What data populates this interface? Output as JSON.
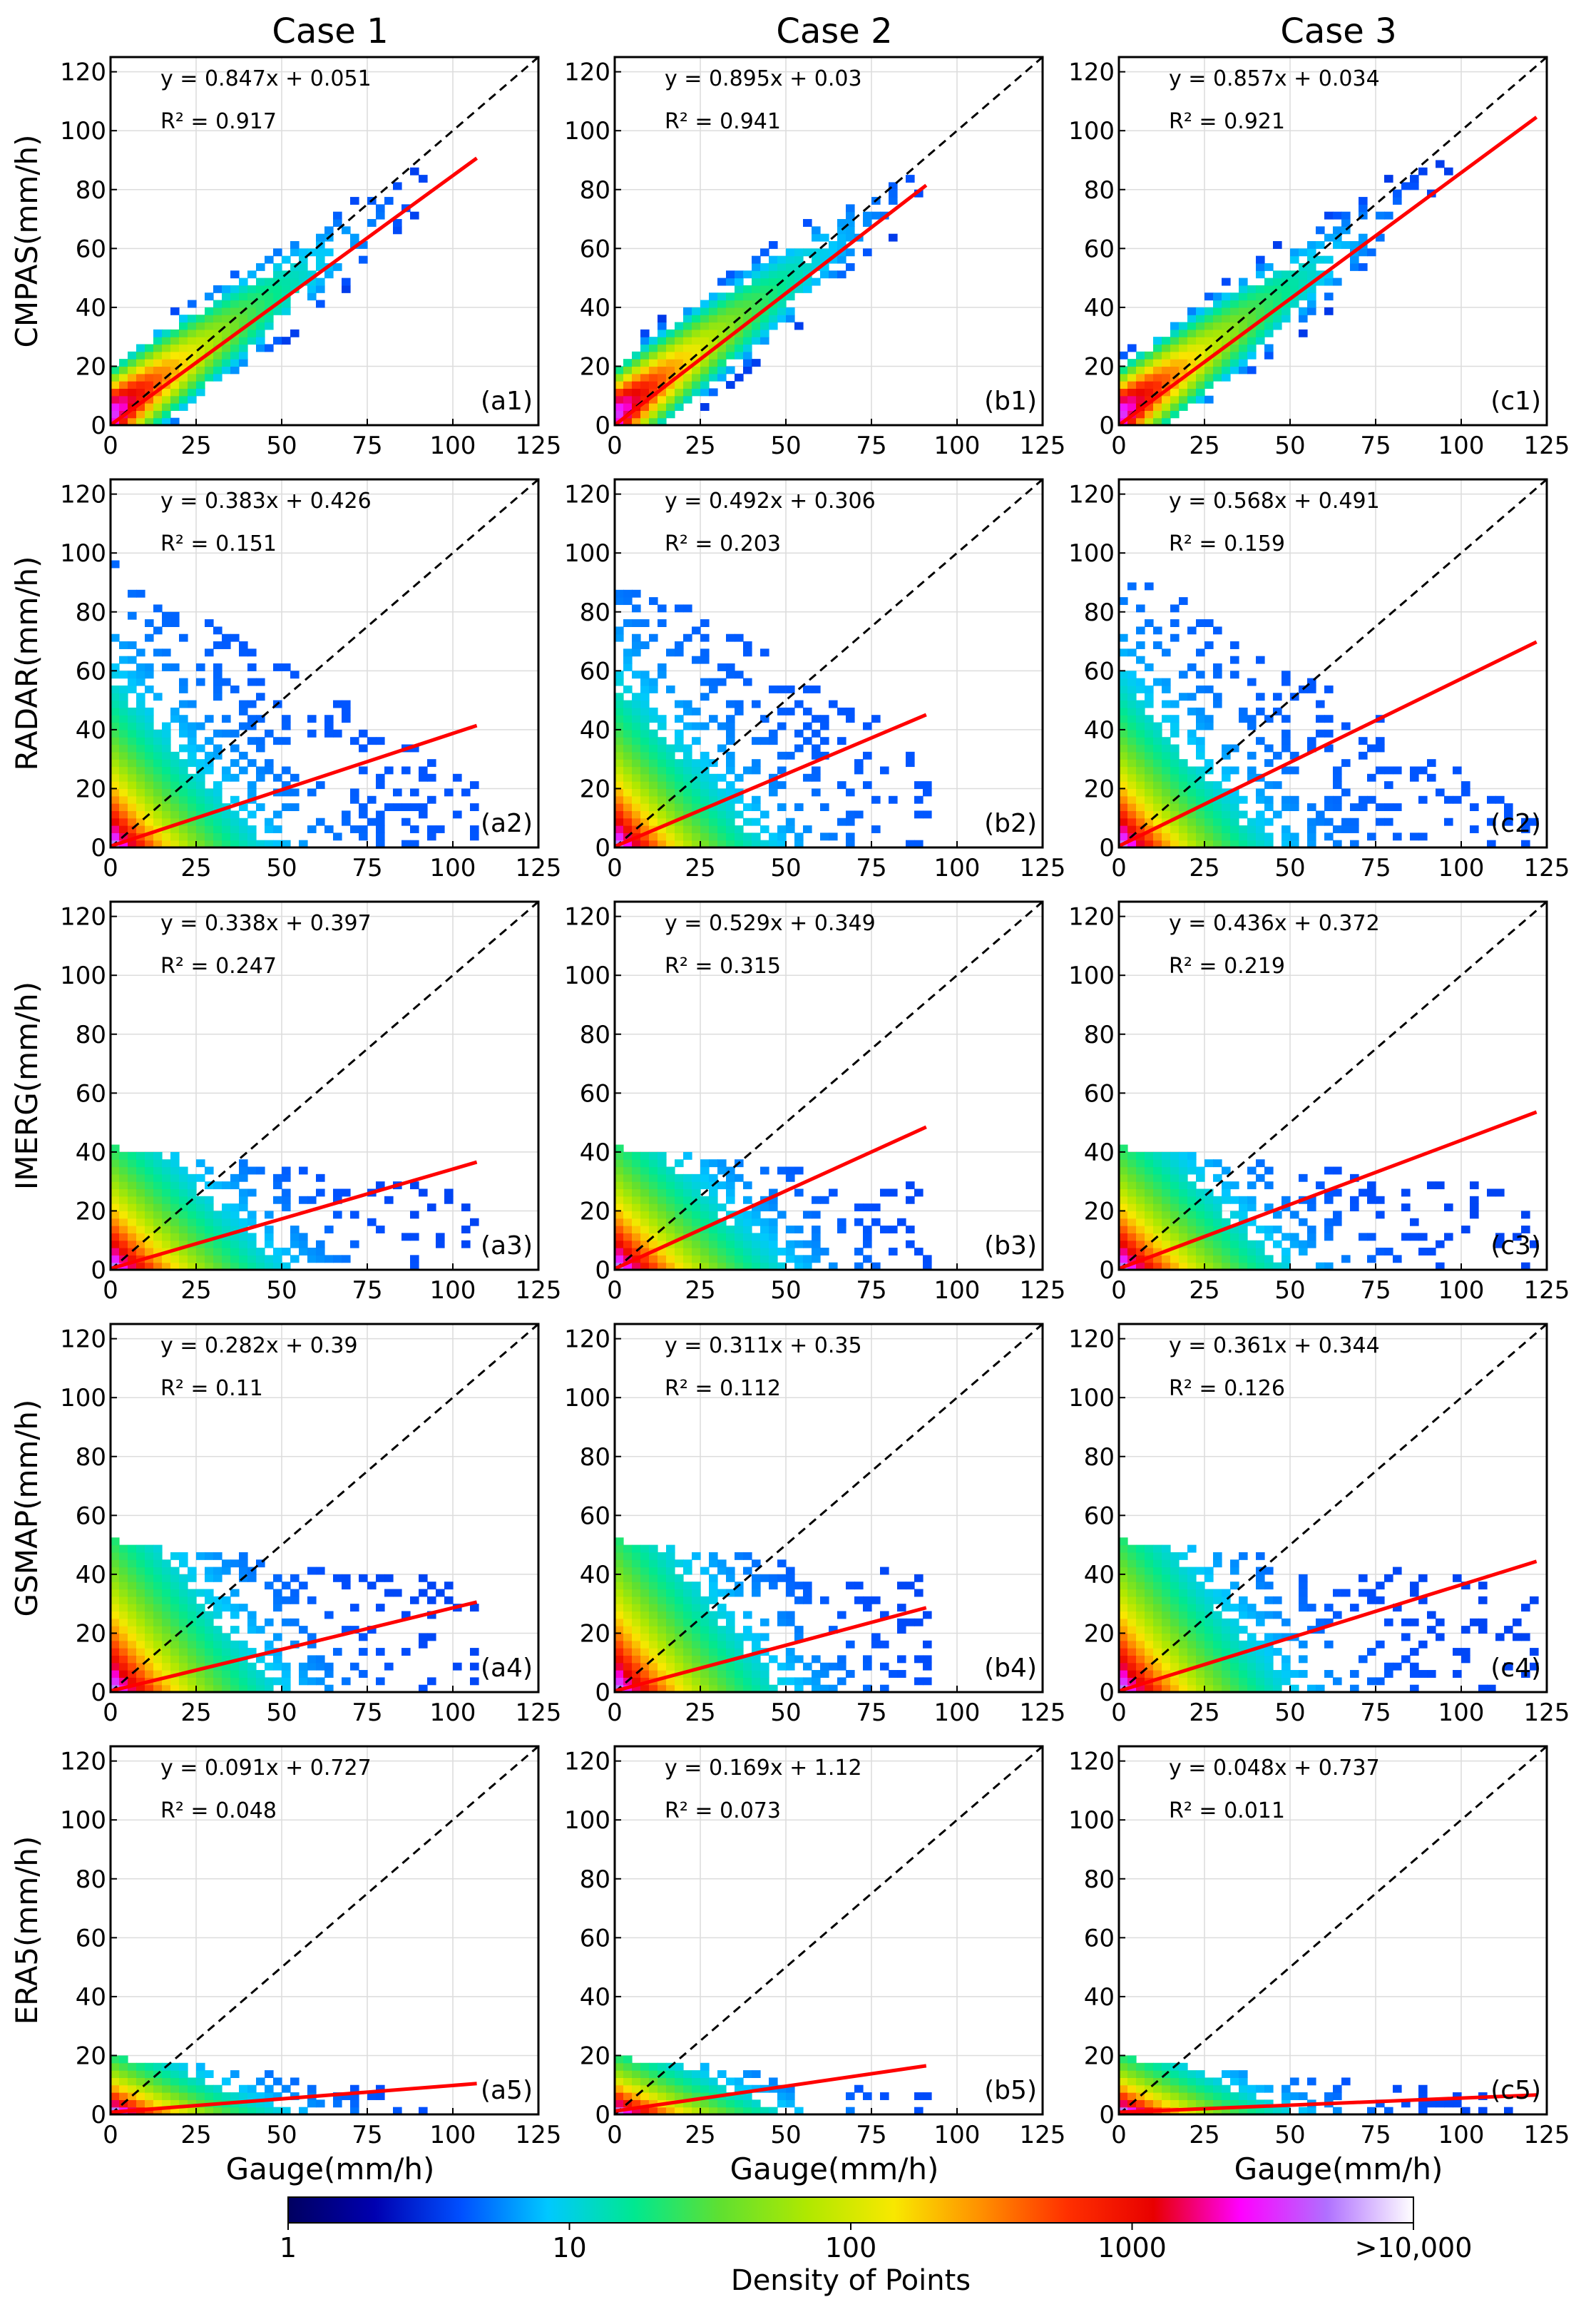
{
  "columns": [
    "Case 1",
    "Case 2",
    "Case 3"
  ],
  "xlabel": "Gauge(mm/h)",
  "colorbar": {
    "label": "Density of Points",
    "ticks": [
      "1",
      "10",
      "100",
      "1000",
      ">10,000"
    ],
    "scale": "log",
    "colors": [
      "#000060",
      "#0000b0",
      "#0050ff",
      "#00c8ff",
      "#00e890",
      "#60e030",
      "#b0e800",
      "#f8e800",
      "#ff9000",
      "#ff3000",
      "#e80000",
      "#ff00ff",
      "#b070ff",
      "#ffffff"
    ]
  },
  "chart_data": [
    {
      "type": "scatter",
      "panel": "(a1)",
      "row_label": "CMPAS(mm/h)",
      "column": "Case 1",
      "fit_label": "y = 0.847x + 0.051",
      "r2_label": "R² = 0.917",
      "slope": 0.847,
      "intercept": 0.051,
      "r2": 0.917,
      "fit_x_range": [
        0,
        107
      ],
      "xlim": [
        0,
        125
      ],
      "ylim": [
        0,
        125
      ],
      "xticks": [
        0,
        25,
        50,
        75,
        100,
        125
      ],
      "yticks": [
        0,
        20,
        40,
        60,
        80,
        100,
        120
      ],
      "identity_line": true,
      "grid": true
    },
    {
      "type": "scatter",
      "panel": "(b1)",
      "row_label": "CMPAS(mm/h)",
      "column": "Case 2",
      "fit_label": "y = 0.895x + 0.03",
      "r2_label": "R² = 0.941",
      "slope": 0.895,
      "intercept": 0.03,
      "r2": 0.941,
      "fit_x_range": [
        0,
        91
      ],
      "xlim": [
        0,
        125
      ],
      "ylim": [
        0,
        125
      ],
      "xticks": [
        0,
        25,
        50,
        75,
        100,
        125
      ],
      "yticks": [
        0,
        20,
        40,
        60,
        80,
        100,
        120
      ],
      "identity_line": true,
      "grid": true
    },
    {
      "type": "scatter",
      "panel": "(c1)",
      "row_label": "CMPAS(mm/h)",
      "column": "Case 3",
      "fit_label": "y = 0.857x + 0.034",
      "r2_label": "R² = 0.921",
      "slope": 0.857,
      "intercept": 0.034,
      "r2": 0.921,
      "fit_x_range": [
        0,
        122
      ],
      "xlim": [
        0,
        125
      ],
      "ylim": [
        0,
        125
      ],
      "xticks": [
        0,
        25,
        50,
        75,
        100,
        125
      ],
      "yticks": [
        0,
        20,
        40,
        60,
        80,
        100,
        120
      ],
      "identity_line": true,
      "grid": true
    },
    {
      "type": "scatter",
      "panel": "(a2)",
      "row_label": "RADAR(mm/h)",
      "column": "Case 1",
      "fit_label": "y = 0.383x + 0.426",
      "r2_label": "R² = 0.151",
      "slope": 0.383,
      "intercept": 0.426,
      "r2": 0.151,
      "fit_x_range": [
        0,
        107
      ],
      "xlim": [
        0,
        125
      ],
      "ylim": [
        0,
        125
      ],
      "xticks": [
        0,
        25,
        50,
        75,
        100,
        125
      ],
      "yticks": [
        0,
        20,
        40,
        60,
        80,
        100,
        120
      ],
      "identity_line": true,
      "grid": true
    },
    {
      "type": "scatter",
      "panel": "(b2)",
      "row_label": "RADAR(mm/h)",
      "column": "Case 2",
      "fit_label": "y = 0.492x + 0.306",
      "r2_label": "R² = 0.203",
      "slope": 0.492,
      "intercept": 0.306,
      "r2": 0.203,
      "fit_x_range": [
        0,
        91
      ],
      "xlim": [
        0,
        125
      ],
      "ylim": [
        0,
        125
      ],
      "xticks": [
        0,
        25,
        50,
        75,
        100,
        125
      ],
      "yticks": [
        0,
        20,
        40,
        60,
        80,
        100,
        120
      ],
      "identity_line": true,
      "grid": true
    },
    {
      "type": "scatter",
      "panel": "(c2)",
      "row_label": "RADAR(mm/h)",
      "column": "Case 3",
      "fit_label": "y = 0.568x + 0.491",
      "r2_label": "R² = 0.159",
      "slope": 0.568,
      "intercept": 0.491,
      "r2": 0.159,
      "fit_x_range": [
        0,
        122
      ],
      "xlim": [
        0,
        125
      ],
      "ylim": [
        0,
        125
      ],
      "xticks": [
        0,
        25,
        50,
        75,
        100,
        125
      ],
      "yticks": [
        0,
        20,
        40,
        60,
        80,
        100,
        120
      ],
      "identity_line": true,
      "grid": true
    },
    {
      "type": "scatter",
      "panel": "(a3)",
      "row_label": "IMERG(mm/h)",
      "column": "Case 1",
      "fit_label": "y = 0.338x + 0.397",
      "r2_label": "R² = 0.247",
      "slope": 0.338,
      "intercept": 0.397,
      "r2": 0.247,
      "fit_x_range": [
        0,
        107
      ],
      "xlim": [
        0,
        125
      ],
      "ylim": [
        0,
        125
      ],
      "xticks": [
        0,
        25,
        50,
        75,
        100,
        125
      ],
      "yticks": [
        0,
        20,
        40,
        60,
        80,
        100,
        120
      ],
      "identity_line": true,
      "grid": true
    },
    {
      "type": "scatter",
      "panel": "(b3)",
      "row_label": "IMERG(mm/h)",
      "column": "Case 2",
      "fit_label": "y = 0.529x + 0.349",
      "r2_label": "R² = 0.315",
      "slope": 0.529,
      "intercept": 0.349,
      "r2": 0.315,
      "fit_x_range": [
        0,
        91
      ],
      "xlim": [
        0,
        125
      ],
      "ylim": [
        0,
        125
      ],
      "xticks": [
        0,
        25,
        50,
        75,
        100,
        125
      ],
      "yticks": [
        0,
        20,
        40,
        60,
        80,
        100,
        120
      ],
      "identity_line": true,
      "grid": true
    },
    {
      "type": "scatter",
      "panel": "(c3)",
      "row_label": "IMERG(mm/h)",
      "column": "Case 3",
      "fit_label": "y = 0.436x + 0.372",
      "r2_label": "R² = 0.219",
      "slope": 0.436,
      "intercept": 0.372,
      "r2": 0.219,
      "fit_x_range": [
        0,
        122
      ],
      "xlim": [
        0,
        125
      ],
      "ylim": [
        0,
        125
      ],
      "xticks": [
        0,
        25,
        50,
        75,
        100,
        125
      ],
      "yticks": [
        0,
        20,
        40,
        60,
        80,
        100,
        120
      ],
      "identity_line": true,
      "grid": true
    },
    {
      "type": "scatter",
      "panel": "(a4)",
      "row_label": "GSMAP(mm/h)",
      "column": "Case 1",
      "fit_label": "y = 0.282x + 0.39",
      "r2_label": "R² = 0.11",
      "slope": 0.282,
      "intercept": 0.39,
      "r2": 0.11,
      "fit_x_range": [
        0,
        107
      ],
      "xlim": [
        0,
        125
      ],
      "ylim": [
        0,
        125
      ],
      "xticks": [
        0,
        25,
        50,
        75,
        100,
        125
      ],
      "yticks": [
        0,
        20,
        40,
        60,
        80,
        100,
        120
      ],
      "identity_line": true,
      "grid": true
    },
    {
      "type": "scatter",
      "panel": "(b4)",
      "row_label": "GSMAP(mm/h)",
      "column": "Case 2",
      "fit_label": "y = 0.311x + 0.35",
      "r2_label": "R² = 0.112",
      "slope": 0.311,
      "intercept": 0.35,
      "r2": 0.112,
      "fit_x_range": [
        0,
        91
      ],
      "xlim": [
        0,
        125
      ],
      "ylim": [
        0,
        125
      ],
      "xticks": [
        0,
        25,
        50,
        75,
        100,
        125
      ],
      "yticks": [
        0,
        20,
        40,
        60,
        80,
        100,
        120
      ],
      "identity_line": true,
      "grid": true
    },
    {
      "type": "scatter",
      "panel": "(c4)",
      "row_label": "GSMAP(mm/h)",
      "column": "Case 3",
      "fit_label": "y = 0.361x + 0.344",
      "r2_label": "R² = 0.126",
      "slope": 0.361,
      "intercept": 0.344,
      "r2": 0.126,
      "fit_x_range": [
        0,
        122
      ],
      "xlim": [
        0,
        125
      ],
      "ylim": [
        0,
        125
      ],
      "xticks": [
        0,
        25,
        50,
        75,
        100,
        125
      ],
      "yticks": [
        0,
        20,
        40,
        60,
        80,
        100,
        120
      ],
      "identity_line": true,
      "grid": true
    },
    {
      "type": "scatter",
      "panel": "(a5)",
      "row_label": "ERA5(mm/h)",
      "column": "Case 1",
      "fit_label": "y = 0.091x + 0.727",
      "r2_label": "R² = 0.048",
      "slope": 0.091,
      "intercept": 0.727,
      "r2": 0.048,
      "fit_x_range": [
        0,
        107
      ],
      "xlim": [
        0,
        125
      ],
      "ylim": [
        0,
        125
      ],
      "xticks": [
        0,
        25,
        50,
        75,
        100,
        125
      ],
      "yticks": [
        0,
        20,
        40,
        60,
        80,
        100,
        120
      ],
      "identity_line": true,
      "grid": true
    },
    {
      "type": "scatter",
      "panel": "(b5)",
      "row_label": "ERA5(mm/h)",
      "column": "Case 2",
      "fit_label": "y = 0.169x + 1.12",
      "r2_label": "R² = 0.073",
      "slope": 0.169,
      "intercept": 1.12,
      "r2": 0.073,
      "fit_x_range": [
        0,
        91
      ],
      "xlim": [
        0,
        125
      ],
      "ylim": [
        0,
        125
      ],
      "xticks": [
        0,
        25,
        50,
        75,
        100,
        125
      ],
      "yticks": [
        0,
        20,
        40,
        60,
        80,
        100,
        120
      ],
      "identity_line": true,
      "grid": true
    },
    {
      "type": "scatter",
      "panel": "(c5)",
      "row_label": "ERA5(mm/h)",
      "column": "Case 3",
      "fit_label": "y = 0.048x + 0.737",
      "r2_label": "R² = 0.011",
      "slope": 0.048,
      "intercept": 0.737,
      "r2": 0.011,
      "fit_x_range": [
        0,
        122
      ],
      "xlim": [
        0,
        125
      ],
      "ylim": [
        0,
        125
      ],
      "xticks": [
        0,
        25,
        50,
        75,
        100,
        125
      ],
      "yticks": [
        0,
        20,
        40,
        60,
        80,
        100,
        120
      ],
      "identity_line": true,
      "grid": true
    }
  ]
}
